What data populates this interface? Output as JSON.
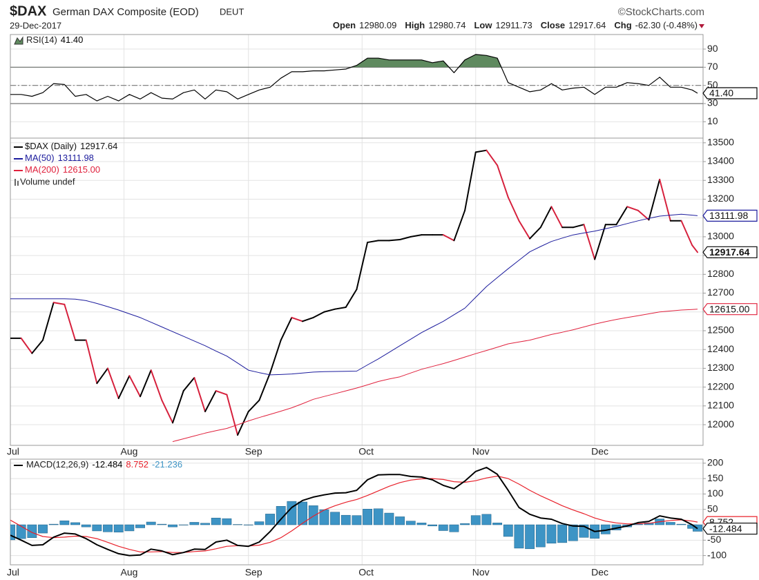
{
  "header": {
    "symbol": "$DAX",
    "name": "German DAX Composite (EOD)",
    "exchange": "DEUT",
    "source": "©StockCharts.com",
    "date": "29-Dec-2017",
    "quote": [
      {
        "label": "Open",
        "value": "12980.09"
      },
      {
        "label": "High",
        "value": "12980.74"
      },
      {
        "label": "Low",
        "value": "12911.73"
      },
      {
        "label": "Close",
        "value": "12917.64"
      },
      {
        "label": "Chg",
        "value": "-62.30 (-0.48%)"
      }
    ]
  },
  "chart_data": [
    {
      "type": "line",
      "title": "RSI(14)",
      "legend": "upper left",
      "x": [
        0,
        2,
        4,
        6,
        8,
        10,
        12,
        14,
        16,
        18,
        20,
        22,
        24,
        26,
        28,
        30,
        32,
        34,
        36,
        38,
        40,
        42,
        44,
        46,
        48,
        50,
        52,
        54,
        56,
        58,
        60,
        62,
        64,
        66,
        68,
        70,
        72,
        74,
        76,
        78,
        80,
        82,
        84,
        86,
        88,
        90,
        92,
        94,
        96,
        98,
        100,
        102,
        104,
        106,
        108,
        110,
        112,
        114,
        116,
        118,
        120,
        122,
        124,
        126,
        127
      ],
      "xlim": [
        0,
        127
      ],
      "xticks": [
        0,
        21,
        44,
        65,
        86,
        108
      ],
      "xtick_labels": false,
      "ylim": [
        -8,
        106
      ],
      "yticks": [
        10,
        30,
        50,
        70,
        90
      ],
      "grid": true,
      "bands": {
        "upper": 70,
        "mid": 50,
        "lower": 30
      },
      "overbought_color": "#5f8a5f",
      "series": [
        {
          "color": "#000000",
          "last_label": "41.40",
          "show_last_box": true,
          "values": [
            40,
            40,
            38,
            42,
            52,
            51,
            38,
            40,
            33,
            38,
            33,
            40,
            35,
            42,
            36,
            35,
            42,
            45,
            35,
            45,
            43,
            35,
            40,
            45,
            48,
            58,
            65,
            65,
            66,
            66,
            67,
            68,
            72,
            80,
            80,
            78,
            78,
            78,
            78,
            75,
            77,
            64,
            78,
            84,
            83,
            80,
            53,
            48,
            43,
            45,
            52,
            45,
            47,
            48,
            40,
            48,
            48,
            53,
            52,
            50,
            59,
            48,
            48,
            45,
            41.4
          ]
        }
      ]
    },
    {
      "type": "line",
      "legend": "upper left",
      "legend_note": "Volume undef",
      "x": [
        0,
        2,
        4,
        6,
        8,
        10,
        12,
        14,
        16,
        18,
        20,
        22,
        24,
        26,
        28,
        30,
        32,
        34,
        36,
        38,
        40,
        42,
        44,
        46,
        48,
        50,
        52,
        54,
        56,
        58,
        60,
        62,
        64,
        66,
        68,
        70,
        72,
        74,
        76,
        78,
        80,
        82,
        84,
        86,
        88,
        90,
        92,
        94,
        96,
        98,
        100,
        102,
        104,
        106,
        108,
        110,
        112,
        114,
        116,
        118,
        120,
        122,
        124,
        126,
        127
      ],
      "xlim": [
        0,
        127
      ],
      "xticks": [
        {
          "value": 0,
          "label": "Jul"
        },
        {
          "value": 21,
          "label": "Aug"
        },
        {
          "value": 44,
          "label": "Sep"
        },
        {
          "value": 65,
          "label": "Oct"
        },
        {
          "value": 86,
          "label": "Nov"
        },
        {
          "value": 108,
          "label": "Dec"
        }
      ],
      "ylim": [
        11890,
        13525
      ],
      "yticks": [
        12000,
        12100,
        12200,
        12300,
        12400,
        12500,
        12600,
        12700,
        12800,
        12900,
        13000,
        13100,
        13200,
        13300,
        13400,
        13500
      ],
      "grid": true,
      "series": [
        {
          "name": "$DAX (Daily)",
          "color": "#000000",
          "down_color": "#d6203c",
          "width": 2,
          "last_label": "12917.64",
          "show_last_box": true,
          "values": [
            12460,
            12460,
            12380,
            12450,
            12650,
            12640,
            12450,
            12450,
            12220,
            12300,
            12140,
            12260,
            12150,
            12290,
            12130,
            12010,
            12180,
            12250,
            12070,
            12180,
            12160,
            11945,
            12070,
            12130,
            12275,
            12450,
            12570,
            12550,
            12570,
            12600,
            12615,
            12625,
            12720,
            12970,
            12980,
            12980,
            12985,
            13000,
            13010,
            13010,
            13010,
            12980,
            13140,
            13450,
            13460,
            13380,
            13210,
            13085,
            12990,
            13050,
            13160,
            13050,
            13050,
            13065,
            12880,
            13065,
            13065,
            13160,
            13140,
            13090,
            13305,
            13085,
            13085,
            12955,
            12917.64
          ]
        },
        {
          "name": "MA(50)",
          "color": "#1a1a9c",
          "width": 1,
          "last_label": "13111.98",
          "show_last_box": true,
          "values": [
            12670,
            12670,
            12670,
            12670,
            12670,
            12670,
            12668,
            12660,
            12645,
            12628,
            12610,
            12590,
            12570,
            12545,
            12520,
            12495,
            12470,
            12445,
            12420,
            12392,
            12365,
            12328,
            12290,
            12277,
            12265,
            12267,
            12270,
            12275,
            12280,
            12282,
            12283,
            12284,
            12285,
            12318,
            12350,
            12385,
            12420,
            12455,
            12490,
            12520,
            12550,
            12585,
            12620,
            12678,
            12735,
            12783,
            12830,
            12875,
            12920,
            12948,
            12975,
            12993,
            13010,
            13020,
            13030,
            13043,
            13055,
            13070,
            13085,
            13098,
            13110,
            13115,
            13120,
            13115,
            13111.98
          ]
        },
        {
          "name": "MA(200)",
          "color": "#e0203c",
          "width": 1,
          "last_label": "12615.00",
          "show_last_box": true,
          "values": [
            null,
            null,
            null,
            null,
            null,
            null,
            null,
            null,
            null,
            null,
            null,
            null,
            null,
            null,
            null,
            11910,
            11925,
            11940,
            11955,
            11968,
            11980,
            12000,
            12020,
            12038,
            12055,
            12072,
            12090,
            12112,
            12135,
            12150,
            12165,
            12180,
            12195,
            12212,
            12230,
            12243,
            12255,
            12275,
            12295,
            12310,
            12325,
            12342,
            12360,
            12378,
            12395,
            12412,
            12430,
            12440,
            12450,
            12465,
            12480,
            12492,
            12505,
            12520,
            12535,
            12548,
            12560,
            12570,
            12580,
            12590,
            12600,
            12605,
            12610,
            12613,
            12615
          ]
        }
      ]
    },
    {
      "type": "combo",
      "title": "MACD(12,26,9)",
      "legend": "upper left",
      "x": [
        0,
        2,
        4,
        6,
        8,
        10,
        12,
        14,
        16,
        18,
        20,
        22,
        24,
        26,
        28,
        30,
        32,
        34,
        36,
        38,
        40,
        42,
        44,
        46,
        48,
        50,
        52,
        54,
        56,
        58,
        60,
        62,
        64,
        66,
        68,
        70,
        72,
        74,
        76,
        78,
        80,
        82,
        84,
        86,
        88,
        90,
        92,
        94,
        96,
        98,
        100,
        102,
        104,
        106,
        108,
        110,
        112,
        114,
        116,
        118,
        120,
        122,
        124,
        126,
        127
      ],
      "xlim": [
        0,
        127
      ],
      "xticks": [
        {
          "value": 0,
          "label": "Jul"
        },
        {
          "value": 21,
          "label": "Aug"
        },
        {
          "value": 44,
          "label": "Sep"
        },
        {
          "value": 65,
          "label": "Oct"
        },
        {
          "value": 86,
          "label": "Nov"
        },
        {
          "value": 108,
          "label": "Dec"
        }
      ],
      "ylim": [
        -130,
        213
      ],
      "yticks": [
        -100,
        -50,
        50,
        100,
        150,
        200
      ],
      "grid": true,
      "series": [
        {
          "kind": "bar",
          "color": "#3d94c5",
          "last_label": "-21.236",
          "show_last_box": false,
          "values": [
            -49,
            -45,
            -42,
            -27,
            2,
            13,
            7,
            -7,
            -20,
            -23,
            -24,
            -20,
            -10,
            9,
            2,
            -7,
            0,
            8,
            5,
            22,
            20,
            1,
            -1,
            10,
            35,
            60,
            76,
            74,
            62,
            49,
            41,
            31,
            30,
            51,
            52,
            38,
            26,
            12,
            6,
            -4,
            -19,
            -23,
            4,
            30,
            34,
            6,
            -38,
            -76,
            -78,
            -72,
            -60,
            -58,
            -52,
            -41,
            -44,
            -30,
            -17,
            -7,
            4,
            6,
            19,
            8,
            2,
            -12,
            -21.236
          ]
        },
        {
          "kind": "line",
          "color": "#e8202a",
          "width": 1.2,
          "last_label": "8.752",
          "show_last_box": true,
          "values": [
            15,
            -5,
            -25,
            -38,
            -42,
            -40,
            -37,
            -38,
            -45,
            -57,
            -70,
            -80,
            -88,
            -88,
            -87,
            -90,
            -90,
            -87,
            -85,
            -78,
            -70,
            -68,
            -69,
            -66,
            -57,
            -42,
            -20,
            5,
            28,
            48,
            62,
            73,
            82,
            95,
            110,
            125,
            137,
            145,
            149,
            150,
            147,
            140,
            138,
            143,
            152,
            158,
            150,
            132,
            112,
            94,
            78,
            62,
            48,
            36,
            22,
            12,
            6,
            3,
            3,
            5,
            10,
            14,
            16,
            12,
            8.752
          ]
        },
        {
          "kind": "line",
          "color": "#000000",
          "width": 2,
          "last_label": "-12.484",
          "show_last_box": true,
          "values": [
            -34,
            -50,
            -67,
            -65,
            -40,
            -27,
            -30,
            -45,
            -65,
            -80,
            -94,
            -100,
            -98,
            -79,
            -85,
            -97,
            -90,
            -79,
            -80,
            -56,
            -50,
            -67,
            -70,
            -56,
            -22,
            18,
            56,
            79,
            90,
            97,
            103,
            104,
            112,
            146,
            162,
            163,
            163,
            157,
            155,
            146,
            128,
            117,
            142,
            173,
            186,
            164,
            112,
            56,
            34,
            22,
            18,
            4,
            -4,
            -5,
            -22,
            -18,
            -11,
            -4,
            7,
            11,
            29,
            22,
            18,
            0,
            -12.484
          ]
        }
      ]
    }
  ]
}
